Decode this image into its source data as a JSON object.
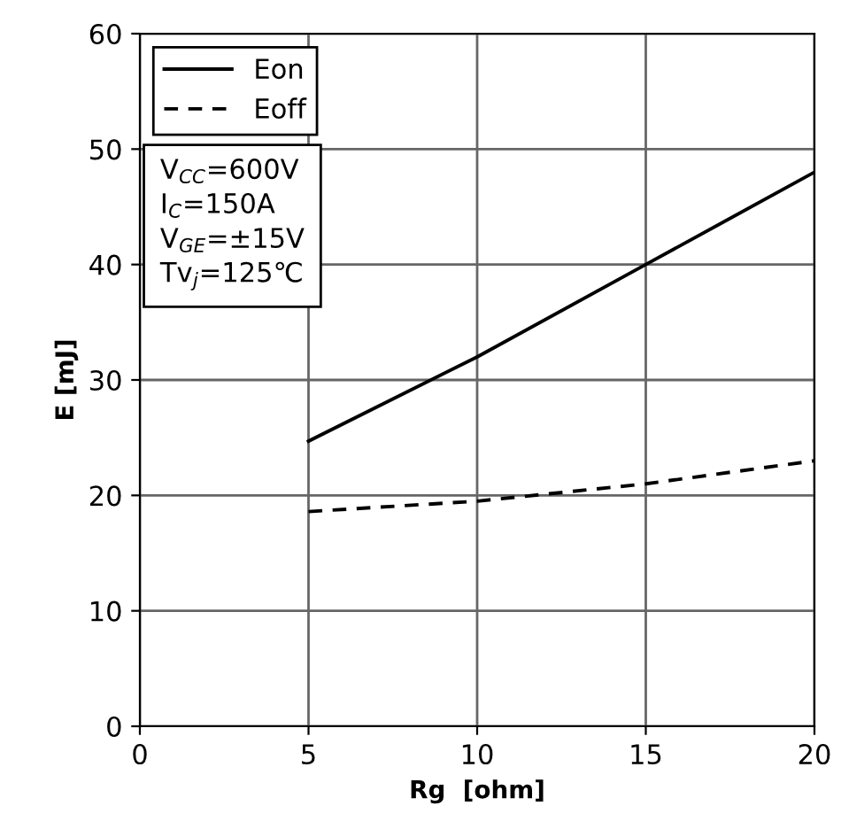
{
  "chart_data": {
    "type": "line",
    "xlabel": "Rg  [ohm]",
    "ylabel": "E [mJ]",
    "x": [
      5,
      10,
      15,
      20
    ],
    "series": [
      {
        "name": "Eon",
        "color": "#000000",
        "line_style": "solid",
        "values": [
          24.7,
          32,
          40,
          48
        ]
      },
      {
        "name": "Eoff",
        "color": "#000000",
        "line_style": "dashed",
        "values": [
          18.6,
          19.5,
          21,
          23
        ]
      }
    ],
    "xlim": [
      0,
      20
    ],
    "xticks": [
      0,
      5,
      10,
      15,
      20
    ],
    "ylim": [
      0,
      60
    ],
    "yticks": [
      0,
      10,
      20,
      30,
      40,
      50,
      60
    ],
    "grid": true,
    "legend": "top left",
    "marker": "none",
    "annotations": [
      "V$_{CC}$=600V\nI$_{C}$=150A\nV$_{GE}$=±15V\nTv$_{j}$=125℃"
    ]
  }
}
